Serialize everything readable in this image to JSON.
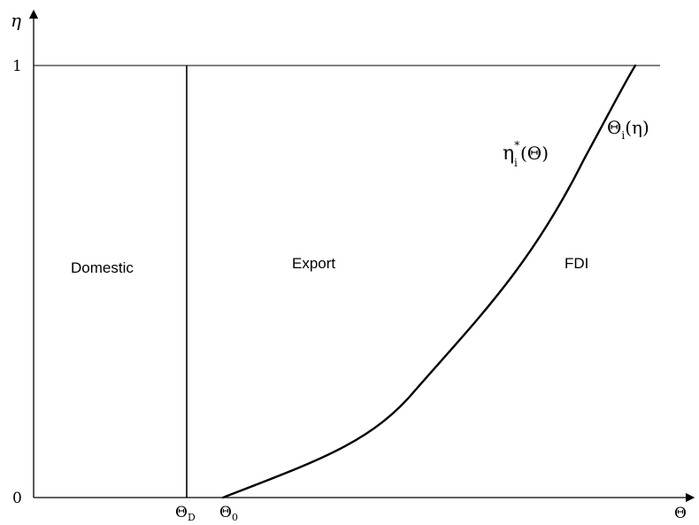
{
  "axes": {
    "y_label": "η",
    "x_label": "Θ",
    "y_tick_top": "1",
    "y_tick_bottom": "0"
  },
  "x_ticks": {
    "theta_d": {
      "base": "Θ",
      "sub": "D"
    },
    "theta_0": {
      "base": "Θ",
      "sub": "0"
    }
  },
  "regions": {
    "domestic": "Domestic",
    "export": "Export",
    "fdi": "FDI"
  },
  "curve_labels": {
    "eta_star": {
      "base": "η",
      "sup": "*",
      "sub": "i",
      "arg": "(Θ)"
    },
    "theta_i": {
      "base": "Θ",
      "sub": "i",
      "arg": "(η)"
    }
  }
}
